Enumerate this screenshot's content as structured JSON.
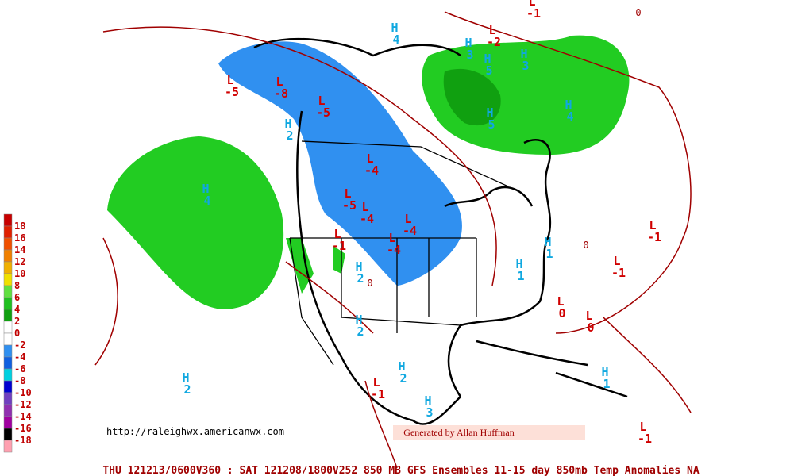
{
  "legend": {
    "levels": [
      18,
      16,
      14,
      12,
      10,
      8,
      6,
      4,
      2,
      0,
      -2,
      -4,
      -6,
      -8,
      -10,
      -12,
      -14,
      -16,
      -18
    ],
    "colors": [
      "#c80000",
      "#e02000",
      "#f05000",
      "#f08000",
      "#f0b000",
      "#f0e000",
      "#60e040",
      "#20c020",
      "#10a010",
      "#ffffff",
      "#ffffff",
      "#3090f0",
      "#1060e0",
      "#00d0e0",
      "#0000d0",
      "#7040c0",
      "#9030b0",
      "#a000a0",
      "#000000",
      "#ffa0b0"
    ]
  },
  "markers": [
    {
      "type": "H",
      "value": 4
    },
    {
      "type": "L",
      "value": -5
    },
    {
      "type": "L",
      "value": -8
    },
    {
      "type": "L",
      "value": -5
    },
    {
      "type": "L",
      "value": -4
    },
    {
      "type": "L",
      "value": -5
    },
    {
      "type": "L",
      "value": -4
    },
    {
      "type": "L",
      "value": -4
    },
    {
      "type": "L",
      "value": -4
    },
    {
      "type": "L",
      "value": -1
    },
    {
      "type": "H",
      "value": 2
    },
    {
      "type": "H",
      "value": 2
    },
    {
      "type": "H",
      "value": 2
    },
    {
      "type": "H",
      "value": 2
    },
    {
      "type": "H",
      "value": 2
    },
    {
      "type": "H",
      "value": 3
    },
    {
      "type": "H",
      "value": 1
    },
    {
      "type": "H",
      "value": 1
    },
    {
      "type": "L",
      "value": 0
    },
    {
      "type": "L",
      "value": 0
    },
    {
      "type": "L",
      "value": -1
    },
    {
      "type": "L",
      "value": -1
    },
    {
      "type": "H",
      "value": 1
    },
    {
      "type": "L",
      "value": -1
    },
    {
      "type": "L",
      "value": -1
    },
    {
      "type": "L",
      "value": -1
    },
    {
      "type": "H",
      "value": 3
    },
    {
      "type": "H",
      "value": 3
    },
    {
      "type": "H",
      "value": 5
    },
    {
      "type": "H",
      "value": 4
    },
    {
      "type": "H",
      "value": 5
    },
    {
      "type": "H",
      "value": 4
    },
    {
      "type": "L",
      "value": -2
    }
  ],
  "contour_labels": [
    0,
    0,
    0
  ],
  "url": "http://raleighwx.americanwx.com",
  "credit": "Generated by Allan Huffman",
  "footer": "THU 121213/0600V360 : SAT 121208/1800V252  850 MB GFS Ensembles 11-15 day 850mb Temp Anomalies NA"
}
